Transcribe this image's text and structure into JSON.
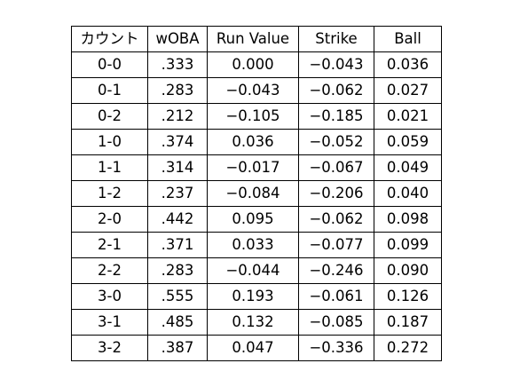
{
  "table": {
    "headers": [
      "カウント",
      "wOBA",
      "Run Value",
      "Strike",
      "Ball"
    ],
    "rows": [
      [
        "0-0",
        ".333",
        "0.000",
        "−0.043",
        "0.036"
      ],
      [
        "0-1",
        ".283",
        "−0.043",
        "−0.062",
        "0.027"
      ],
      [
        "0-2",
        ".212",
        "−0.105",
        "−0.185",
        "0.021"
      ],
      [
        "1-0",
        ".374",
        "0.036",
        "−0.052",
        "0.059"
      ],
      [
        "1-1",
        ".314",
        "−0.017",
        "−0.067",
        "0.049"
      ],
      [
        "1-2",
        ".237",
        "−0.084",
        "−0.206",
        "0.040"
      ],
      [
        "2-0",
        ".442",
        "0.095",
        "−0.062",
        "0.098"
      ],
      [
        "2-1",
        ".371",
        "0.033",
        "−0.077",
        "0.099"
      ],
      [
        "2-2",
        ".283",
        "−0.044",
        "−0.246",
        "0.090"
      ],
      [
        "3-0",
        ".555",
        "0.193",
        "−0.061",
        "0.126"
      ],
      [
        "3-1",
        ".485",
        "0.132",
        "−0.085",
        "0.187"
      ],
      [
        "3-2",
        ".387",
        "0.047",
        "−0.336",
        "0.272"
      ]
    ]
  }
}
